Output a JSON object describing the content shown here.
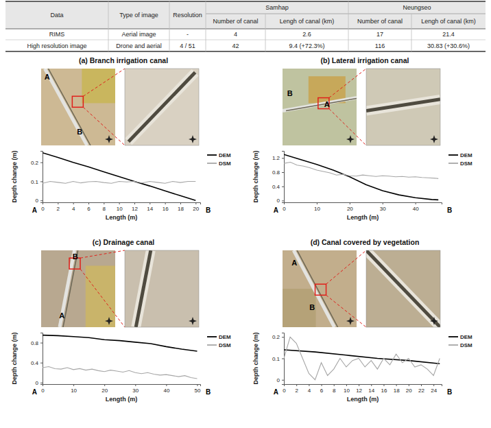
{
  "table": {
    "header": [
      [
        "Data",
        "Type of image",
        "Resolution",
        "Samhap",
        "Neungseo"
      ],
      [
        "Number of canal",
        "Lengh of canal (km)",
        "Number of canal",
        "Lengh of canal (km)"
      ]
    ],
    "rows": [
      [
        "RIMS",
        "Aerial image",
        "-",
        "4",
        "2.6",
        "17",
        "21.4"
      ],
      [
        "High resolution image",
        "Drone and aerial",
        "4 / 51",
        "42",
        "9.4 (+72.3%)",
        "116",
        "30.83 (+30.6%)"
      ]
    ]
  },
  "chart_data": [
    {
      "type": "line",
      "title": "(a) Branch irrigation canal",
      "x_label": "Length (m)",
      "y_label": "Depth change (m)",
      "xlim": [
        0,
        20.6
      ],
      "xticks": [
        0,
        2,
        4,
        6,
        8,
        10,
        12,
        14,
        16,
        18,
        20
      ],
      "ylim": [
        -0.01,
        0.26
      ],
      "yticks": [
        0,
        0.1,
        0.2
      ],
      "legend": "right",
      "annotations": [
        "A",
        "B"
      ],
      "series": [
        {
          "name": "DEM",
          "color": "#000000",
          "x": [
            0,
            2,
            4,
            6,
            8,
            10,
            12,
            14,
            16,
            18,
            20
          ],
          "values": [
            0.25,
            0.226,
            0.2,
            0.176,
            0.15,
            0.125,
            0.1,
            0.076,
            0.05,
            0.025,
            0.0
          ]
        },
        {
          "name": "DSM",
          "color": "#a6a6a6",
          "x": [
            0,
            1,
            2,
            3,
            4,
            5,
            6,
            7,
            8,
            9,
            10,
            11,
            12,
            13,
            14,
            15,
            16,
            17,
            18,
            19,
            20
          ],
          "values": [
            0.09,
            0.1,
            0.095,
            0.09,
            0.1,
            0.092,
            0.098,
            0.1,
            0.094,
            0.09,
            0.1,
            0.097,
            0.1,
            0.092,
            0.1,
            0.095,
            0.09,
            0.1,
            0.094,
            0.1,
            0.1
          ]
        }
      ]
    },
    {
      "type": "line",
      "title": "(b) Lateral irrigation canal",
      "x_label": "Length (m)",
      "y_label": "Depth change (m)",
      "xlim": [
        0,
        48
      ],
      "xticks": [
        0,
        10,
        20,
        30,
        40
      ],
      "ylim": [
        -0.05,
        1.4
      ],
      "yticks": [
        0,
        0.4,
        0.8,
        1.2
      ],
      "legend": "right",
      "annotations": [
        "A",
        "B"
      ],
      "series": [
        {
          "name": "DEM",
          "color": "#000000",
          "x": [
            0,
            5,
            10,
            15,
            20,
            25,
            30,
            35,
            40,
            45,
            47
          ],
          "values": [
            1.3,
            1.16,
            1.02,
            0.86,
            0.67,
            0.45,
            0.28,
            0.16,
            0.08,
            0.03,
            0.02
          ]
        },
        {
          "name": "DSM",
          "color": "#a6a6a6",
          "x": [
            0,
            2,
            4,
            6,
            8,
            10,
            12,
            14,
            16,
            18,
            20,
            22,
            24,
            26,
            28,
            30,
            32,
            34,
            36,
            38,
            40,
            42,
            44,
            46,
            47
          ],
          "values": [
            1.05,
            1.08,
            1.0,
            0.97,
            0.92,
            0.86,
            0.82,
            0.78,
            0.72,
            0.74,
            0.7,
            0.69,
            0.72,
            0.7,
            0.68,
            0.7,
            0.69,
            0.67,
            0.68,
            0.66,
            0.67,
            0.65,
            0.64,
            0.63,
            0.62
          ]
        }
      ]
    },
    {
      "type": "line",
      "title": "(c) Drainage canal",
      "x_label": "Length (m)",
      "y_label": "Depth change (m)",
      "xlim": [
        0,
        51
      ],
      "xticks": [
        0,
        10,
        20,
        30,
        40,
        50
      ],
      "ylim": [
        -0.03,
        1.0
      ],
      "yticks": [
        0,
        0.4,
        0.8
      ],
      "legend": "right",
      "annotations": [
        "A",
        "B"
      ],
      "series": [
        {
          "name": "DEM",
          "color": "#000000",
          "x": [
            0,
            5,
            10,
            15,
            20,
            25,
            30,
            35,
            40,
            45,
            50
          ],
          "values": [
            0.95,
            0.94,
            0.92,
            0.9,
            0.86,
            0.84,
            0.81,
            0.78,
            0.72,
            0.67,
            0.63
          ]
        },
        {
          "name": "DSM",
          "color": "#a6a6a6",
          "x": [
            0,
            2,
            4,
            6,
            8,
            10,
            12,
            14,
            16,
            18,
            20,
            22,
            24,
            26,
            28,
            30,
            32,
            34,
            36,
            38,
            40,
            42,
            44,
            46,
            48,
            50
          ],
          "values": [
            0.3,
            0.32,
            0.28,
            0.27,
            0.3,
            0.26,
            0.28,
            0.25,
            0.27,
            0.24,
            0.22,
            0.25,
            0.23,
            0.21,
            0.24,
            0.2,
            0.18,
            0.2,
            0.17,
            0.15,
            0.16,
            0.14,
            0.12,
            0.14,
            0.1,
            0.08
          ]
        }
      ]
    },
    {
      "type": "line",
      "title": "(d) Canal covered by vegetation",
      "x_label": "Length (m)",
      "y_label": "Depth change (m)",
      "xlim": [
        0,
        25.3
      ],
      "xticks": [
        0,
        2,
        4,
        6,
        8,
        10,
        12,
        14,
        16,
        18,
        20,
        22,
        24
      ],
      "ylim": [
        -0.02,
        0.22
      ],
      "yticks": [
        0,
        0.1,
        0.2
      ],
      "legend": "right",
      "annotations": [
        "A",
        "B"
      ],
      "series": [
        {
          "name": "DEM",
          "color": "#000000",
          "x": [
            0,
            5,
            10,
            15,
            20,
            25
          ],
          "values": [
            0.14,
            0.13,
            0.115,
            0.1,
            0.09,
            0.075
          ]
        },
        {
          "name": "DSM",
          "color": "#a6a6a6",
          "x": [
            0,
            1,
            2,
            3,
            4,
            5,
            6,
            7,
            8,
            9,
            10,
            11,
            12,
            13,
            14,
            15,
            16,
            17,
            18,
            19,
            20,
            21,
            22,
            23,
            24,
            25
          ],
          "values": [
            0.1,
            0.2,
            0.17,
            0.1,
            0.03,
            0.0,
            0.08,
            0.02,
            0.05,
            0.1,
            0.06,
            0.09,
            0.1,
            0.06,
            0.09,
            0.05,
            0.1,
            0.07,
            0.12,
            0.08,
            0.1,
            0.06,
            0.07,
            0.05,
            0.02,
            0.1
          ]
        }
      ]
    }
  ]
}
